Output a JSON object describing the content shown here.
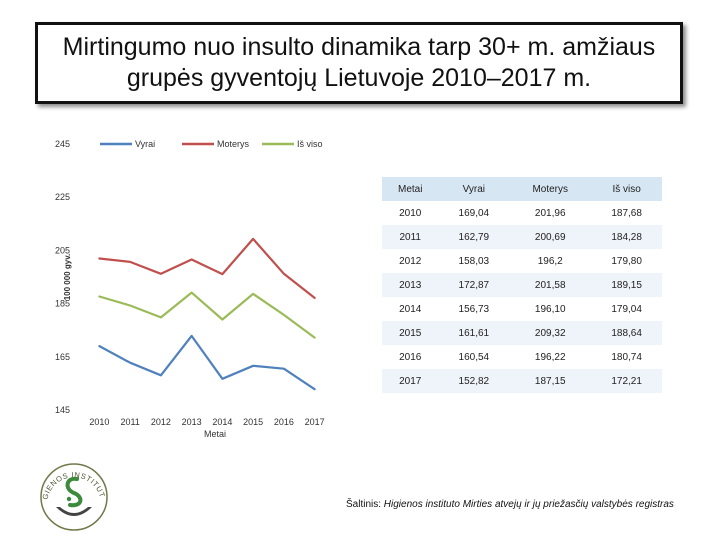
{
  "title": "Mirtingumo nuo insulto dinamika tarp 30+ m. amžiaus grupės gyventojų Lietuvoje 2010–2017 m.",
  "chart_data": {
    "type": "line",
    "x": [
      "2010",
      "2011",
      "2012",
      "2013",
      "2014",
      "2015",
      "2016",
      "2017"
    ],
    "xlabel": "Metai",
    "ylabel": "100 000 gyv.",
    "ylim": [
      145,
      245
    ],
    "yticks": [
      145,
      165,
      185,
      205,
      225,
      245
    ],
    "grid": false,
    "legend_position": "top",
    "series": [
      {
        "name": "Vyrai",
        "color": "#4f81bd",
        "values": [
          169.04,
          162.79,
          158.03,
          172.87,
          156.73,
          161.61,
          160.54,
          152.82
        ]
      },
      {
        "name": "Moterys",
        "color": "#c0504d",
        "values": [
          201.96,
          200.69,
          196.2,
          201.58,
          196.1,
          209.32,
          196.22,
          187.15
        ]
      },
      {
        "name": "Iš viso",
        "color": "#9bbb59",
        "values": [
          187.68,
          184.28,
          179.8,
          189.15,
          179.04,
          188.64,
          180.74,
          172.21
        ]
      }
    ]
  },
  "table": {
    "headers": [
      "Metai",
      "Vyrai",
      "Moterys",
      "Iš viso"
    ],
    "rows": [
      [
        "2010",
        "169,04",
        "201,96",
        "187,68"
      ],
      [
        "2011",
        "162,79",
        "200,69",
        "184,28"
      ],
      [
        "2012",
        "158,03",
        "196,2",
        "179,80"
      ],
      [
        "2013",
        "172,87",
        "201,58",
        "189,15"
      ],
      [
        "2014",
        "156,73",
        "196,10",
        "179,04"
      ],
      [
        "2015",
        "161,61",
        "209,32",
        "188,64"
      ],
      [
        "2016",
        "160,54",
        "196,22",
        "180,74"
      ],
      [
        "2017",
        "152,82",
        "187,15",
        "172,21"
      ]
    ]
  },
  "source": {
    "prefix": "Šaltinis: ",
    "text": "Higienos instituto Mirties atvejų ir jų priežasčių valstybės registras"
  },
  "logo": {
    "icon": "higienos-institutas-logo",
    "text": "HIGIENOS INSTITUTAS"
  }
}
